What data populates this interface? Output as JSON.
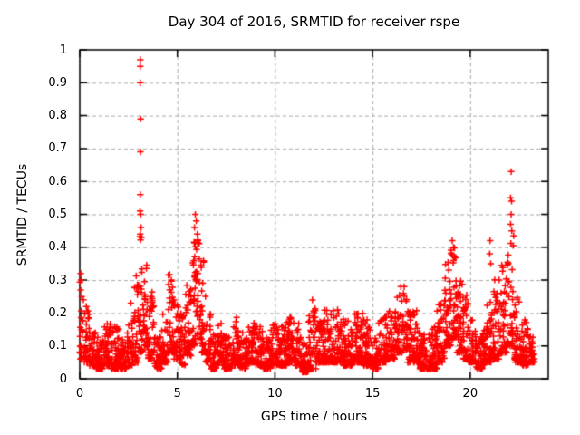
{
  "figure": {
    "background": "#ffffff",
    "title": "Day 304 of 2016, SRMTID for receiver rspe"
  },
  "chart_data": {
    "type": "scatter",
    "title": "Day 304 of 2016, SRMTID for receiver rspe",
    "xlabel": "GPS time / hours",
    "ylabel": "SRMTID / TECUs",
    "xlim": [
      0,
      24
    ],
    "ylim": [
      0,
      1
    ],
    "x_ticks": [
      0,
      5,
      10,
      15,
      20
    ],
    "x_tick_labels": [
      "0",
      "5",
      "10",
      "15",
      "20"
    ],
    "y_ticks": [
      0,
      0.1,
      0.2,
      0.3,
      0.4,
      0.5,
      0.6,
      0.7,
      0.8,
      0.9,
      1
    ],
    "y_tick_labels": [
      "0",
      "0.1",
      "0.2",
      "0.3",
      "0.4",
      "0.5",
      "0.6",
      "0.7",
      "0.8",
      "0.9",
      "1"
    ],
    "grid": true,
    "legend": "none",
    "marker": "plus",
    "marker_color": "#ff0000",
    "grid_color": "#a8a8a8",
    "border_color": "#000000",
    "text_color": "#000000",
    "series_name": "SRMTID",
    "samples_per_hour": 120,
    "noise_bins": [
      [
        0.0,
        0.2,
        0.06,
        0.3
      ],
      [
        0.2,
        0.5,
        0.05,
        0.22
      ],
      [
        0.5,
        0.8,
        0.04,
        0.15
      ],
      [
        0.8,
        1.2,
        0.03,
        0.13
      ],
      [
        1.2,
        1.6,
        0.04,
        0.17
      ],
      [
        1.6,
        2.0,
        0.03,
        0.16
      ],
      [
        2.0,
        2.4,
        0.03,
        0.12
      ],
      [
        2.4,
        2.8,
        0.04,
        0.2
      ],
      [
        2.8,
        3.0,
        0.05,
        0.35
      ],
      [
        3.0,
        3.25,
        0.08,
        0.52
      ],
      [
        3.25,
        3.5,
        0.1,
        0.38
      ],
      [
        3.5,
        3.8,
        0.06,
        0.3
      ],
      [
        3.8,
        4.2,
        0.03,
        0.13
      ],
      [
        4.2,
        4.5,
        0.05,
        0.2
      ],
      [
        4.5,
        4.8,
        0.08,
        0.34
      ],
      [
        4.8,
        5.1,
        0.06,
        0.26
      ],
      [
        5.1,
        5.4,
        0.04,
        0.2
      ],
      [
        5.4,
        5.7,
        0.07,
        0.3
      ],
      [
        5.7,
        5.95,
        0.1,
        0.44
      ],
      [
        5.95,
        6.2,
        0.12,
        0.48
      ],
      [
        6.2,
        6.45,
        0.08,
        0.36
      ],
      [
        6.45,
        6.7,
        0.05,
        0.2
      ],
      [
        6.7,
        7.0,
        0.03,
        0.14
      ],
      [
        7.0,
        7.4,
        0.04,
        0.17
      ],
      [
        7.4,
        7.8,
        0.03,
        0.14
      ],
      [
        7.8,
        8.2,
        0.04,
        0.19
      ],
      [
        8.2,
        8.6,
        0.03,
        0.14
      ],
      [
        8.6,
        9.0,
        0.05,
        0.17
      ],
      [
        9.0,
        9.4,
        0.04,
        0.16
      ],
      [
        9.4,
        9.8,
        0.03,
        0.13
      ],
      [
        9.8,
        10.2,
        0.04,
        0.17
      ],
      [
        10.2,
        10.6,
        0.04,
        0.16
      ],
      [
        10.6,
        11.0,
        0.05,
        0.19
      ],
      [
        11.0,
        11.4,
        0.04,
        0.17
      ],
      [
        11.4,
        11.7,
        0.02,
        0.11
      ],
      [
        11.7,
        12.1,
        0.03,
        0.22
      ],
      [
        12.1,
        12.5,
        0.05,
        0.19
      ],
      [
        12.5,
        13.0,
        0.05,
        0.21
      ],
      [
        13.0,
        13.5,
        0.05,
        0.21
      ],
      [
        13.5,
        14.0,
        0.04,
        0.18
      ],
      [
        14.0,
        14.5,
        0.05,
        0.2
      ],
      [
        14.5,
        15.0,
        0.04,
        0.18
      ],
      [
        15.0,
        15.3,
        0.03,
        0.13
      ],
      [
        15.3,
        15.7,
        0.05,
        0.19
      ],
      [
        15.7,
        16.2,
        0.06,
        0.21
      ],
      [
        16.2,
        16.8,
        0.08,
        0.26
      ],
      [
        16.8,
        17.3,
        0.05,
        0.21
      ],
      [
        17.3,
        17.8,
        0.03,
        0.14
      ],
      [
        17.8,
        18.3,
        0.03,
        0.16
      ],
      [
        18.3,
        18.7,
        0.05,
        0.24
      ],
      [
        18.7,
        19.0,
        0.1,
        0.36
      ],
      [
        19.0,
        19.3,
        0.12,
        0.4
      ],
      [
        19.3,
        19.6,
        0.08,
        0.32
      ],
      [
        19.6,
        19.9,
        0.06,
        0.26
      ],
      [
        19.9,
        20.3,
        0.05,
        0.18
      ],
      [
        20.3,
        20.7,
        0.03,
        0.14
      ],
      [
        20.7,
        21.1,
        0.05,
        0.25
      ],
      [
        21.1,
        21.5,
        0.06,
        0.32
      ],
      [
        21.5,
        21.9,
        0.08,
        0.35
      ],
      [
        21.9,
        22.25,
        0.1,
        0.45
      ],
      [
        22.25,
        22.6,
        0.05,
        0.25
      ],
      [
        22.6,
        23.0,
        0.04,
        0.18
      ],
      [
        23.0,
        23.3,
        0.05,
        0.13
      ]
    ],
    "outlier_points": [
      [
        0.05,
        0.32
      ],
      [
        0.07,
        0.3
      ],
      [
        0.05,
        0.27
      ],
      [
        0.1,
        0.25
      ],
      [
        2.62,
        0.23
      ],
      [
        3.1,
        0.97
      ],
      [
        3.1,
        0.95
      ],
      [
        3.1,
        0.9
      ],
      [
        3.12,
        0.79
      ],
      [
        3.11,
        0.69
      ],
      [
        3.1,
        0.56
      ],
      [
        3.09,
        0.51
      ],
      [
        3.12,
        0.5
      ],
      [
        3.14,
        0.46
      ],
      [
        3.1,
        0.44
      ],
      [
        3.16,
        0.43
      ],
      [
        5.92,
        0.5
      ],
      [
        5.97,
        0.48
      ],
      [
        5.88,
        0.46
      ],
      [
        6.02,
        0.44
      ],
      [
        6.06,
        0.42
      ],
      [
        11.92,
        0.24
      ],
      [
        16.45,
        0.28
      ],
      [
        16.62,
        0.28
      ],
      [
        19.08,
        0.42
      ],
      [
        19.15,
        0.4
      ],
      [
        19.02,
        0.38
      ],
      [
        19.2,
        0.37
      ],
      [
        21.02,
        0.42
      ],
      [
        21.0,
        0.38
      ],
      [
        21.05,
        0.35
      ],
      [
        22.1,
        0.63
      ],
      [
        22.07,
        0.55
      ],
      [
        22.12,
        0.54
      ],
      [
        22.1,
        0.5
      ],
      [
        22.07,
        0.47
      ],
      [
        22.13,
        0.45
      ]
    ]
  }
}
